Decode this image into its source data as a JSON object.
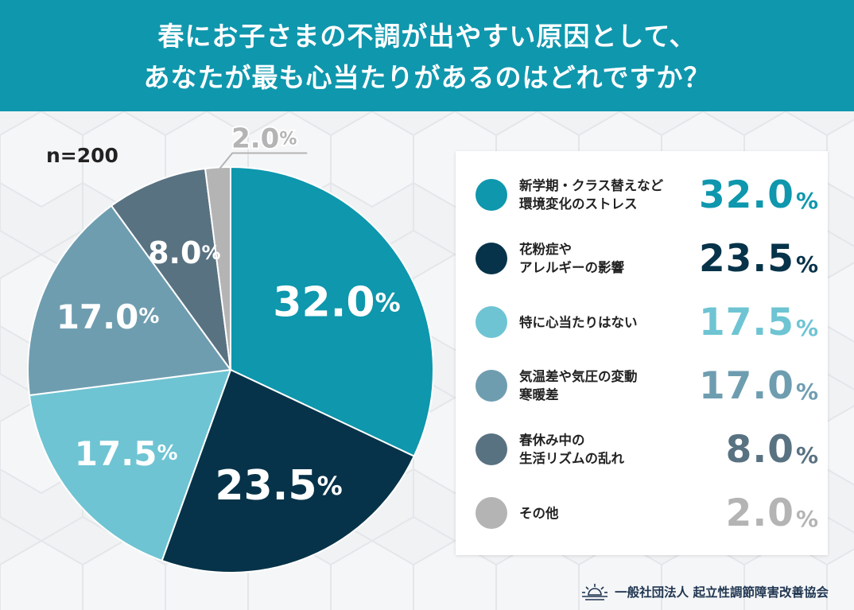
{
  "header": {
    "title_line1": "春にお子さまの不調が出やすい原因として、",
    "title_line2": "あなたが最も心当たりがあるのはどれですか？",
    "background_color": "#0f97ad"
  },
  "sample_size": "n=200",
  "chart_data": {
    "type": "pie",
    "title": "春にお子さまの不調が出やすい原因として、あなたが最も心当たりがあるのはどれですか？",
    "categories": [
      "新学期・クラス替えなど環境変化のストレス",
      "花粉症やアレルギーの影響",
      "特に心当たりはない",
      "気温差や気圧の変動寒暖差",
      "春休み中の生活リズムの乱れ",
      "その他"
    ],
    "values": [
      32.0,
      23.5,
      17.5,
      17.0,
      8.0,
      2.0
    ],
    "value_labels": [
      "32.0",
      "23.5",
      "17.5",
      "17.0",
      "8.0",
      "2.0"
    ],
    "percent_sign": "%",
    "colors": [
      "#0e97ad",
      "#063349",
      "#6ec4d3",
      "#6f9db0",
      "#597282",
      "#b4b4b4"
    ],
    "legend_position": "right"
  },
  "legend": {
    "items": [
      {
        "line1": "新学期・クラス替えなど",
        "line2": "環境変化のストレス"
      },
      {
        "line1": "花粉症や",
        "line2": "アレルギーの影響"
      },
      {
        "line1": "特に心当たりはない",
        "line2": ""
      },
      {
        "line1": "気温差や気圧の変動",
        "line2": "寒暖差"
      },
      {
        "line1": "春休み中の",
        "line2": "生活リズムの乱れ"
      },
      {
        "line1": "その他",
        "line2": ""
      }
    ]
  },
  "footer": {
    "organization": "一般社団法人 起立性調節障害改善協会",
    "logo_icon": "sunrise-icon"
  }
}
